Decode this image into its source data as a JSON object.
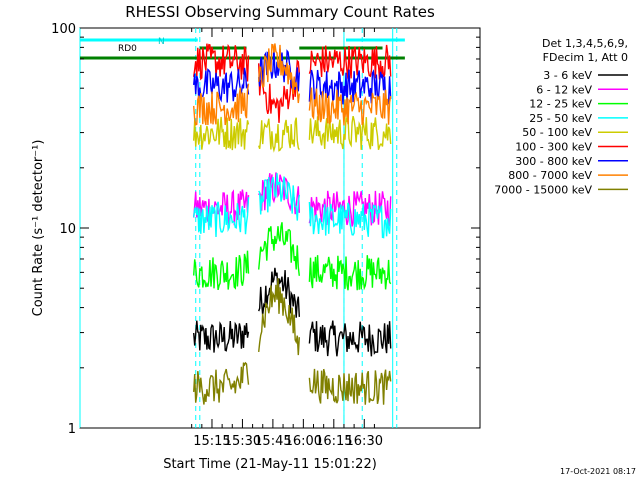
{
  "chart_data": {
    "type": "line",
    "title": "RHESSI Observing Summary Count Rates",
    "xlabel": "Start Time (21-May-11 15:01:22)",
    "ylabel": "Count Rate (s⁻¹ detector⁻¹)",
    "y_scale": "log",
    "ylim": [
      1,
      100
    ],
    "y_ticks": [
      "1",
      "10",
      "100"
    ],
    "x_range_minutes": [
      -50,
      147
    ],
    "x_ticks": [
      {
        "label": "15:15",
        "t": 15
      },
      {
        "label": "15:30",
        "t": 30
      },
      {
        "label": "15:45",
        "t": 45
      },
      {
        "label": "16:00",
        "t": 60
      },
      {
        "label": "16:15",
        "t": 75
      },
      {
        "label": "16:30",
        "t": 90
      }
    ],
    "legend_header": [
      "Det 1,3,4,5,6,9,",
      "FDecim 1, Att 0"
    ],
    "legend_position": "right",
    "series": [
      {
        "name": "3 - 6 keV",
        "color": "#000000",
        "level": 2.8,
        "bump": 2.7
      },
      {
        "name": "6 - 12 keV",
        "color": "#ff00ff",
        "level": 12.5,
        "bump": 3.5
      },
      {
        "name": "12 - 25 keV",
        "color": "#00ff00",
        "level": 6.0,
        "bump": 3.0
      },
      {
        "name": "25 - 50 keV",
        "color": "#00ffff",
        "level": 11.0,
        "bump": 4.5
      },
      {
        "name": "50 - 100 keV",
        "color": "#cccc00",
        "level": 30.0,
        "bump": 0.0
      },
      {
        "name": "100 - 300 keV",
        "color": "#ff0000",
        "level": 68.0,
        "bump": -28.0
      },
      {
        "name": "300 - 800 keV",
        "color": "#0000ff",
        "level": 51.0,
        "bump": 16.0
      },
      {
        "name": "800 - 7000 keV",
        "color": "#ff8000",
        "level": 40.0,
        "bump": 29.0
      },
      {
        "name": "7000 - 15000 keV",
        "color": "#808000",
        "level": 1.6,
        "bump": 3.0
      }
    ],
    "annotations": {
      "rd0": "RD0",
      "n": "N"
    }
  },
  "footer": {
    "timestamp": "17-Oct-2021 08:17"
  }
}
